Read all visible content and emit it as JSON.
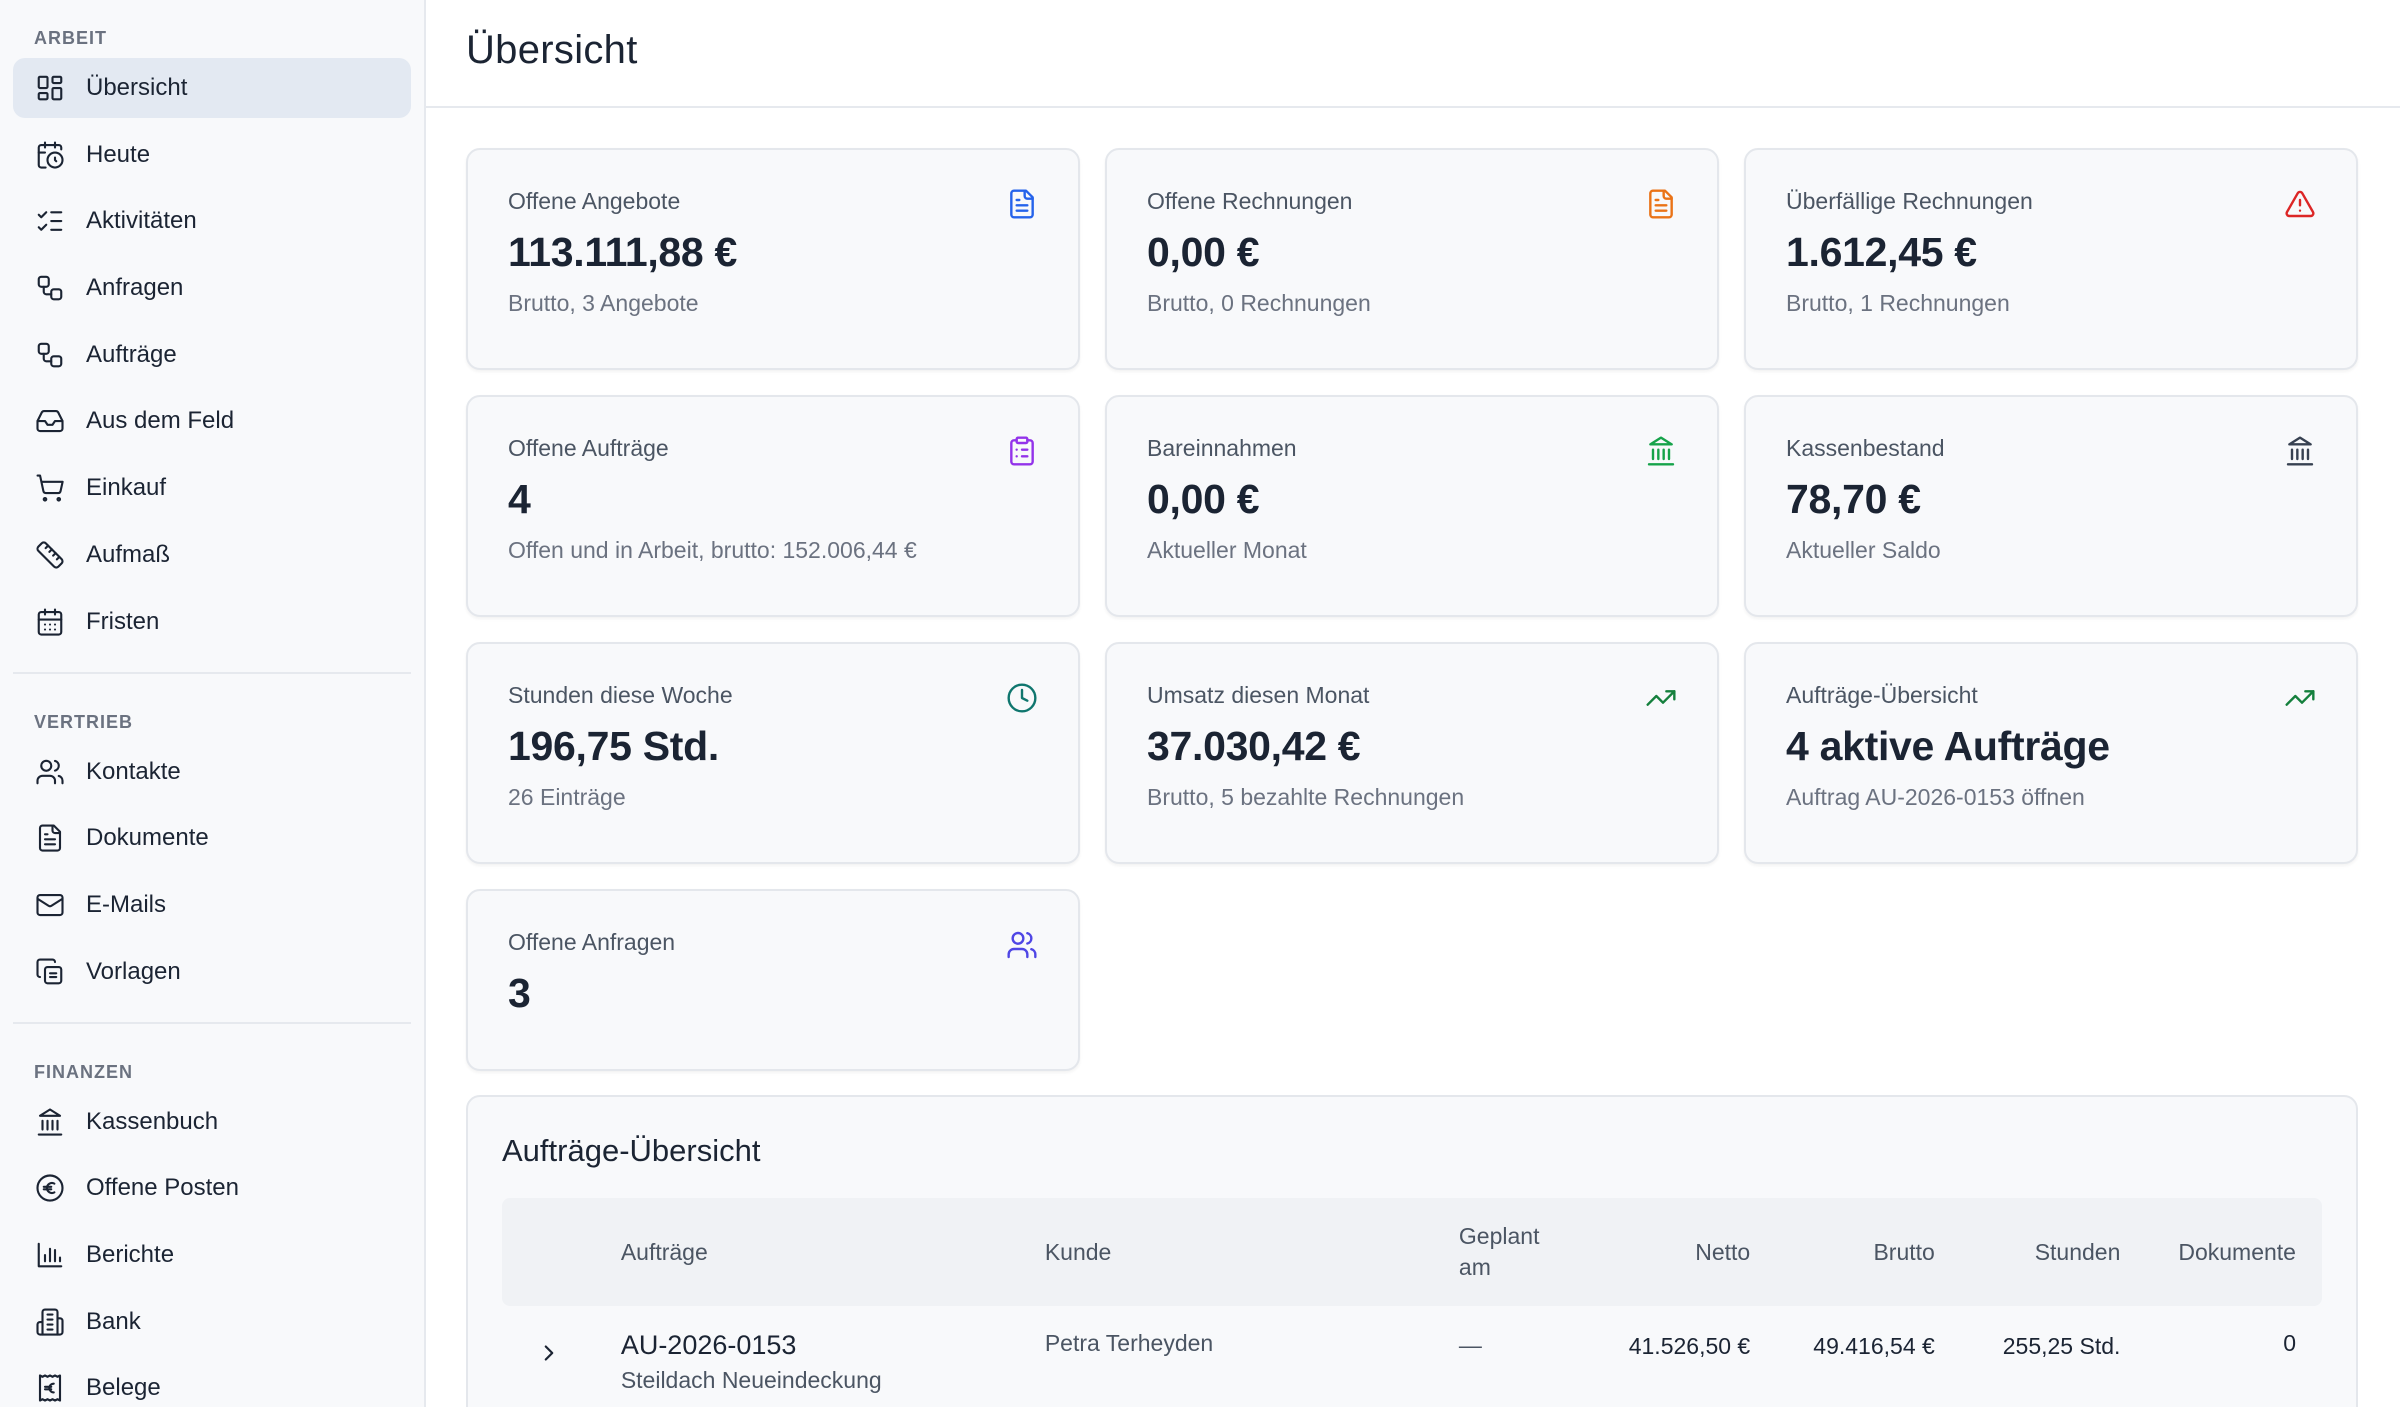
{
  "sidebar": {
    "sections": [
      {
        "title": "ARBEIT",
        "items": [
          {
            "label": "Übersicht",
            "icon": "dashboard-icon",
            "active": true
          },
          {
            "label": "Heute",
            "icon": "calendar-clock-icon"
          },
          {
            "label": "Aktivitäten",
            "icon": "checklist-icon"
          },
          {
            "label": "Anfragen",
            "icon": "workflow-icon"
          },
          {
            "label": "Aufträge",
            "icon": "workflow-icon"
          },
          {
            "label": "Aus dem Feld",
            "icon": "inbox-icon"
          },
          {
            "label": "Einkauf",
            "icon": "shopping-cart-icon"
          },
          {
            "label": "Aufmaß",
            "icon": "ruler-icon"
          },
          {
            "label": "Fristen",
            "icon": "calendar-icon"
          }
        ]
      },
      {
        "title": "VERTRIEB",
        "items": [
          {
            "label": "Kontakte",
            "icon": "users-icon"
          },
          {
            "label": "Dokumente",
            "icon": "document-icon"
          },
          {
            "label": "E-Mails",
            "icon": "mail-icon"
          },
          {
            "label": "Vorlagen",
            "icon": "copy-icon"
          }
        ]
      },
      {
        "title": "FINANZEN",
        "items": [
          {
            "label": "Kassenbuch",
            "icon": "landmark-icon"
          },
          {
            "label": "Offene Posten",
            "icon": "euro-circle-icon"
          },
          {
            "label": "Berichte",
            "icon": "bar-chart-icon"
          },
          {
            "label": "Bank",
            "icon": "bank-building-icon"
          },
          {
            "label": "Belege",
            "icon": "receipt-euro-icon"
          }
        ]
      }
    ]
  },
  "header": {
    "title": "Übersicht"
  },
  "cards": [
    {
      "label": "Offene Angebote",
      "value": "113.111,88 €",
      "sub": "Brutto, 3 Angebote",
      "icon": "document-icon",
      "color": "#2563eb"
    },
    {
      "label": "Offene Rechnungen",
      "value": "0,00 €",
      "sub": "Brutto, 0 Rechnungen",
      "icon": "document-icon",
      "color": "#ea7317"
    },
    {
      "label": "Überfällige Rechnungen",
      "value": "1.612,45 €",
      "sub": "Brutto, 1 Rechnungen",
      "icon": "alert-triangle-icon",
      "color": "#dc2626"
    },
    {
      "label": "Offene Aufträge",
      "value": "4",
      "sub": "Offen und in Arbeit, brutto: 152.006,44 €",
      "icon": "clipboard-icon",
      "color": "#9333ea"
    },
    {
      "label": "Bareinnahmen",
      "value": "0,00 €",
      "sub": "Aktueller Monat",
      "icon": "landmark-icon",
      "color": "#16a34a"
    },
    {
      "label": "Kassenbestand",
      "value": "78,70 €",
      "sub": "Aktueller Saldo",
      "icon": "landmark-icon",
      "color": "#374151"
    },
    {
      "label": "Stunden diese Woche",
      "value": "196,75 Std.",
      "sub": "26 Einträge",
      "icon": "clock-icon",
      "color": "#0f766e"
    },
    {
      "label": "Umsatz diesen Monat",
      "value": "37.030,42 €",
      "sub": "Brutto, 5 bezahlte Rechnungen",
      "icon": "trending-up-icon",
      "color": "#15803d"
    },
    {
      "label": "Aufträge-Übersicht",
      "value": "4 aktive Aufträge",
      "sub": "Auftrag AU-2026-0153 öffnen",
      "icon": "trending-up-icon",
      "color": "#15803d"
    },
    {
      "label": "Offene Anfragen",
      "value": "3",
      "sub": "",
      "icon": "users-icon",
      "color": "#4f46e5"
    }
  ],
  "orders_table": {
    "title": "Aufträge-Übersicht",
    "columns": {
      "auftraege": "Aufträge",
      "kunde": "Kunde",
      "geplant": "Geplant am",
      "netto": "Netto",
      "brutto": "Brutto",
      "stunden": "Stunden",
      "dokumente": "Dokumente"
    },
    "rows": [
      {
        "id": "AU-2026-0153",
        "desc": "Steildach Neueindeckung",
        "kunde": "Petra Terheyden",
        "geplant": "—",
        "netto": "41.526,50 €",
        "brutto": "49.416,54 €",
        "stunden": "255,25 Std.",
        "dokumente": "0"
      }
    ]
  }
}
